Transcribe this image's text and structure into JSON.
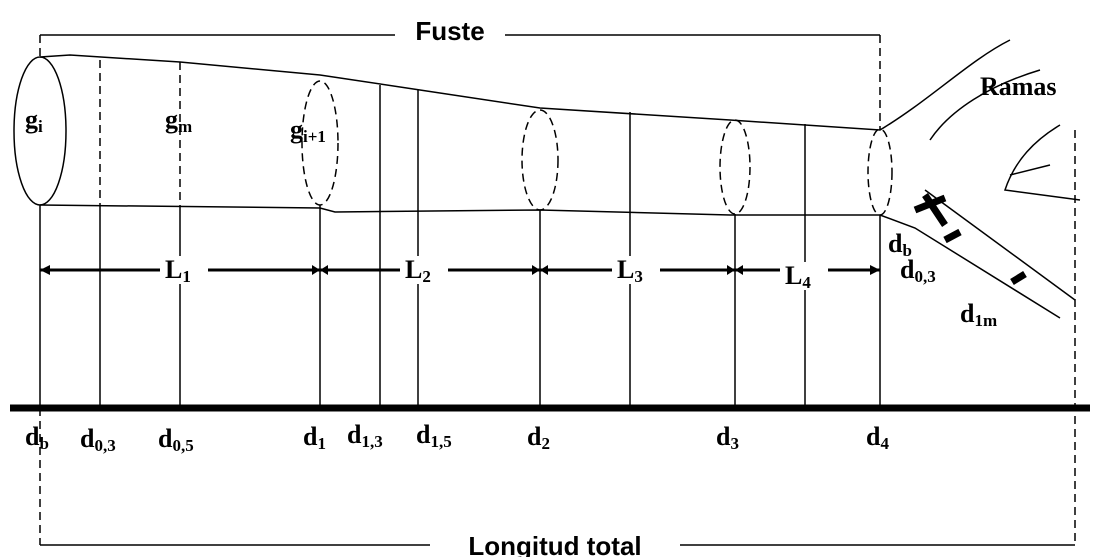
{
  "header": {
    "title": "Fuste",
    "branches": "Ramas",
    "total": "Longitud total"
  },
  "sections": [
    {
      "main": "g",
      "sub": "i"
    },
    {
      "main": "g",
      "sub": "m"
    },
    {
      "main": "g",
      "sub": "i+1"
    }
  ],
  "segments": [
    {
      "main": "L",
      "sub": "1"
    },
    {
      "main": "L",
      "sub": "2"
    },
    {
      "main": "L",
      "sub": "3"
    },
    {
      "main": "L",
      "sub": "4"
    }
  ],
  "diameters": [
    {
      "main": "d",
      "sub": "b"
    },
    {
      "main": "d",
      "sub": "0,3"
    },
    {
      "main": "d",
      "sub": "0,5"
    },
    {
      "main": "d",
      "sub": "1"
    },
    {
      "main": "d",
      "sub": "1,3"
    },
    {
      "main": "d",
      "sub": "1,5"
    },
    {
      "main": "d",
      "sub": "2"
    },
    {
      "main": "d",
      "sub": "3"
    },
    {
      "main": "d",
      "sub": "4"
    }
  ],
  "branch_diameters": [
    {
      "main": "d",
      "sub": "b"
    },
    {
      "main": "d",
      "sub": "0,3"
    },
    {
      "main": "d",
      "sub": "1m"
    }
  ]
}
